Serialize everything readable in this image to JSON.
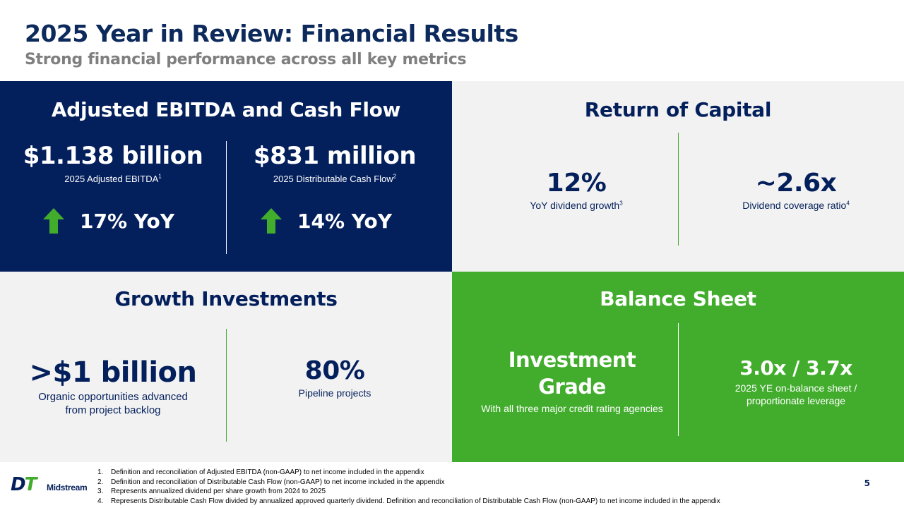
{
  "header": {
    "title": "2025 Year in Review: Financial Results",
    "subtitle": "Strong financial performance across all key metrics"
  },
  "ebitda": {
    "title": "Adjusted EBITDA and Cash Flow",
    "left": {
      "value": "$1.138 billion",
      "label": "2025 Adjusted EBITDA",
      "note": "1",
      "yoy": "17% YoY"
    },
    "right": {
      "value": "$831 million",
      "label": "2025 Distributable Cash Flow",
      "note": "2",
      "yoy": "14% YoY"
    }
  },
  "capital": {
    "title": "Return of Capital",
    "left": {
      "value": "12%",
      "label": "YoY dividend growth",
      "note": "3"
    },
    "right": {
      "value": "~2.6x",
      "label": "Dividend coverage ratio",
      "note": "4"
    }
  },
  "growth": {
    "title": "Growth Investments",
    "left": {
      "value": ">$1 billion",
      "label_line1": "Organic opportunities advanced",
      "label_line2": "from project backlog"
    },
    "right": {
      "value": "80%",
      "label": "Pipeline projects"
    }
  },
  "balance": {
    "title": "Balance Sheet",
    "left": {
      "value_line1": "Investment",
      "value_line2": "Grade",
      "label": "With all three major credit rating agencies"
    },
    "right": {
      "value": "3.0x / 3.7x",
      "label_line1": "2025 YE on-balance sheet /",
      "label_line2": "proportionate leverage"
    }
  },
  "footnotes": [
    {
      "num": "1.",
      "text": "Definition and reconciliation of Adjusted EBITDA (non-GAAP) to net income included in the appendix"
    },
    {
      "num": "2.",
      "text": "Definition and reconciliation of Distributable Cash Flow (non-GAAP) to net income included in the appendix"
    },
    {
      "num": "3.",
      "text": "Represents annualized dividend per share growth from 2024 to 2025"
    },
    {
      "num": "4.",
      "text": "Represents Distributable Cash Flow divided by annualized approved quarterly dividend. Definition and reconciliation of Distributable Cash Flow (non-GAAP) to net income included in the appendix"
    }
  ],
  "logo": {
    "mark_d": "D",
    "mark_t": "T",
    "word": "Midstream"
  },
  "page_number": "5",
  "colors": {
    "navy": "#04205c",
    "green": "#42ad2d",
    "gray_panel": "#f2f2f2",
    "subtitle_gray": "#7f7f7f"
  }
}
